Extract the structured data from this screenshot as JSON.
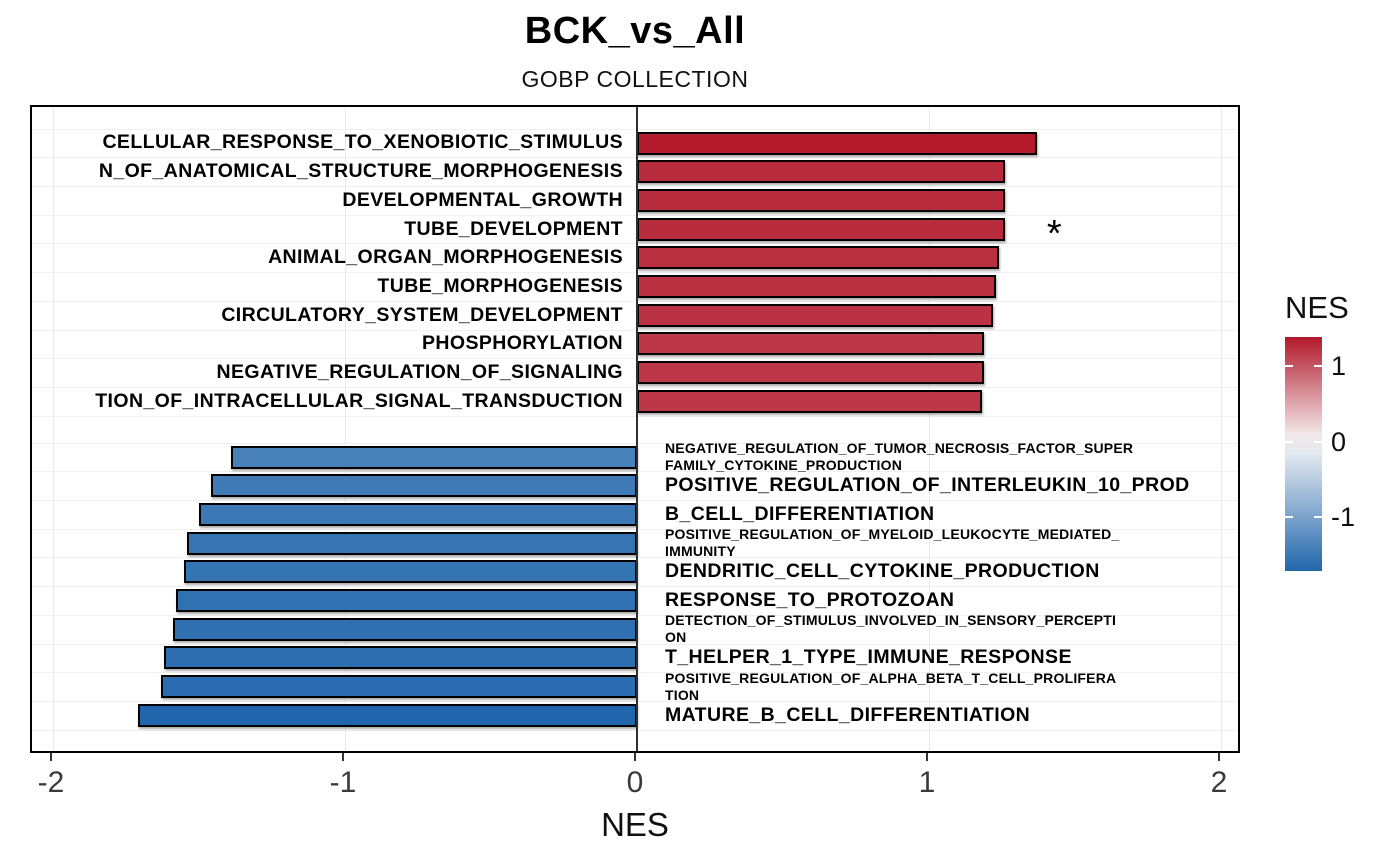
{
  "header": {
    "title": "BCK_vs_All",
    "subtitle": "GOBP COLLECTION"
  },
  "chart_data": {
    "type": "bar",
    "orientation": "horizontal",
    "title": "BCK_vs_All",
    "subtitle": "GOBP COLLECTION",
    "xlabel": "NES",
    "xlim": [
      -2.07,
      2.07
    ],
    "x_ticks": [
      -2,
      -1,
      0,
      1,
      2
    ],
    "grid": true,
    "legend": {
      "title": "NES",
      "position": "right",
      "ticks": [
        1,
        0,
        -1
      ]
    },
    "color_scale": {
      "low": "#2166ac",
      "mid": "#f7f7f7",
      "high": "#b2182b",
      "domain": [
        -1.71,
        1.38
      ]
    },
    "bars": [
      {
        "label": "CELLULAR_RESPONSE_TO_XENOBIOTIC_STIMULUS",
        "nes": 1.37,
        "label_side": "left",
        "label_size": "large"
      },
      {
        "label": "N_OF_ANATOMICAL_STRUCTURE_MORPHOGENESIS",
        "nes": 1.26,
        "label_side": "left",
        "label_size": "large"
      },
      {
        "label": "DEVELOPMENTAL_GROWTH",
        "nes": 1.26,
        "label_side": "left",
        "label_size": "large"
      },
      {
        "label": "TUBE_DEVELOPMENT",
        "nes": 1.26,
        "label_side": "left",
        "label_size": "large",
        "annotation": "*"
      },
      {
        "label": "ANIMAL_ORGAN_MORPHOGENESIS",
        "nes": 1.24,
        "label_side": "left",
        "label_size": "large"
      },
      {
        "label": "TUBE_MORPHOGENESIS",
        "nes": 1.23,
        "label_side": "left",
        "label_size": "large"
      },
      {
        "label": "CIRCULATORY_SYSTEM_DEVELOPMENT",
        "nes": 1.22,
        "label_side": "left",
        "label_size": "large"
      },
      {
        "label": "PHOSPHORYLATION",
        "nes": 1.19,
        "label_side": "left",
        "label_size": "large"
      },
      {
        "label": "NEGATIVE_REGULATION_OF_SIGNALING",
        "nes": 1.19,
        "label_side": "left",
        "label_size": "large"
      },
      {
        "label": "TION_OF_INTRACELLULAR_SIGNAL_TRANSDUCTION",
        "nes": 1.18,
        "label_side": "left",
        "label_size": "large"
      },
      {
        "label": "NEGATIVE_REGULATION_OF_TUMOR_NECROSIS_FACTOR_SUPER\nFAMILY_CYTOKINE_PRODUCTION",
        "nes": -1.39,
        "label_side": "right",
        "label_size": "small"
      },
      {
        "label": "POSITIVE_REGULATION_OF_INTERLEUKIN_10_PROD",
        "nes": -1.46,
        "label_side": "right",
        "label_size": "large"
      },
      {
        "label": "B_CELL_DIFFERENTIATION",
        "nes": -1.5,
        "label_side": "right",
        "label_size": "large"
      },
      {
        "label": "POSITIVE_REGULATION_OF_MYELOID_LEUKOCYTE_MEDIATED_\nIMMUNITY",
        "nes": -1.54,
        "label_side": "right",
        "label_size": "small"
      },
      {
        "label": "DENDRITIC_CELL_CYTOKINE_PRODUCTION",
        "nes": -1.55,
        "label_side": "right",
        "label_size": "large"
      },
      {
        "label": "RESPONSE_TO_PROTOZOAN",
        "nes": -1.58,
        "label_side": "right",
        "label_size": "large"
      },
      {
        "label": "DETECTION_OF_STIMULUS_INVOLVED_IN_SENSORY_PERCEPTI\nON",
        "nes": -1.59,
        "label_side": "right",
        "label_size": "small"
      },
      {
        "label": "T_HELPER_1_TYPE_IMMUNE_RESPONSE",
        "nes": -1.62,
        "label_side": "right",
        "label_size": "large"
      },
      {
        "label": "POSITIVE_REGULATION_OF_ALPHA_BETA_T_CELL_PROLIFERA\nTION",
        "nes": -1.63,
        "label_side": "right",
        "label_size": "small"
      },
      {
        "label": "MATURE_B_CELL_DIFFERENTIATION",
        "nes": -1.71,
        "label_side": "right",
        "label_size": "large"
      }
    ]
  }
}
